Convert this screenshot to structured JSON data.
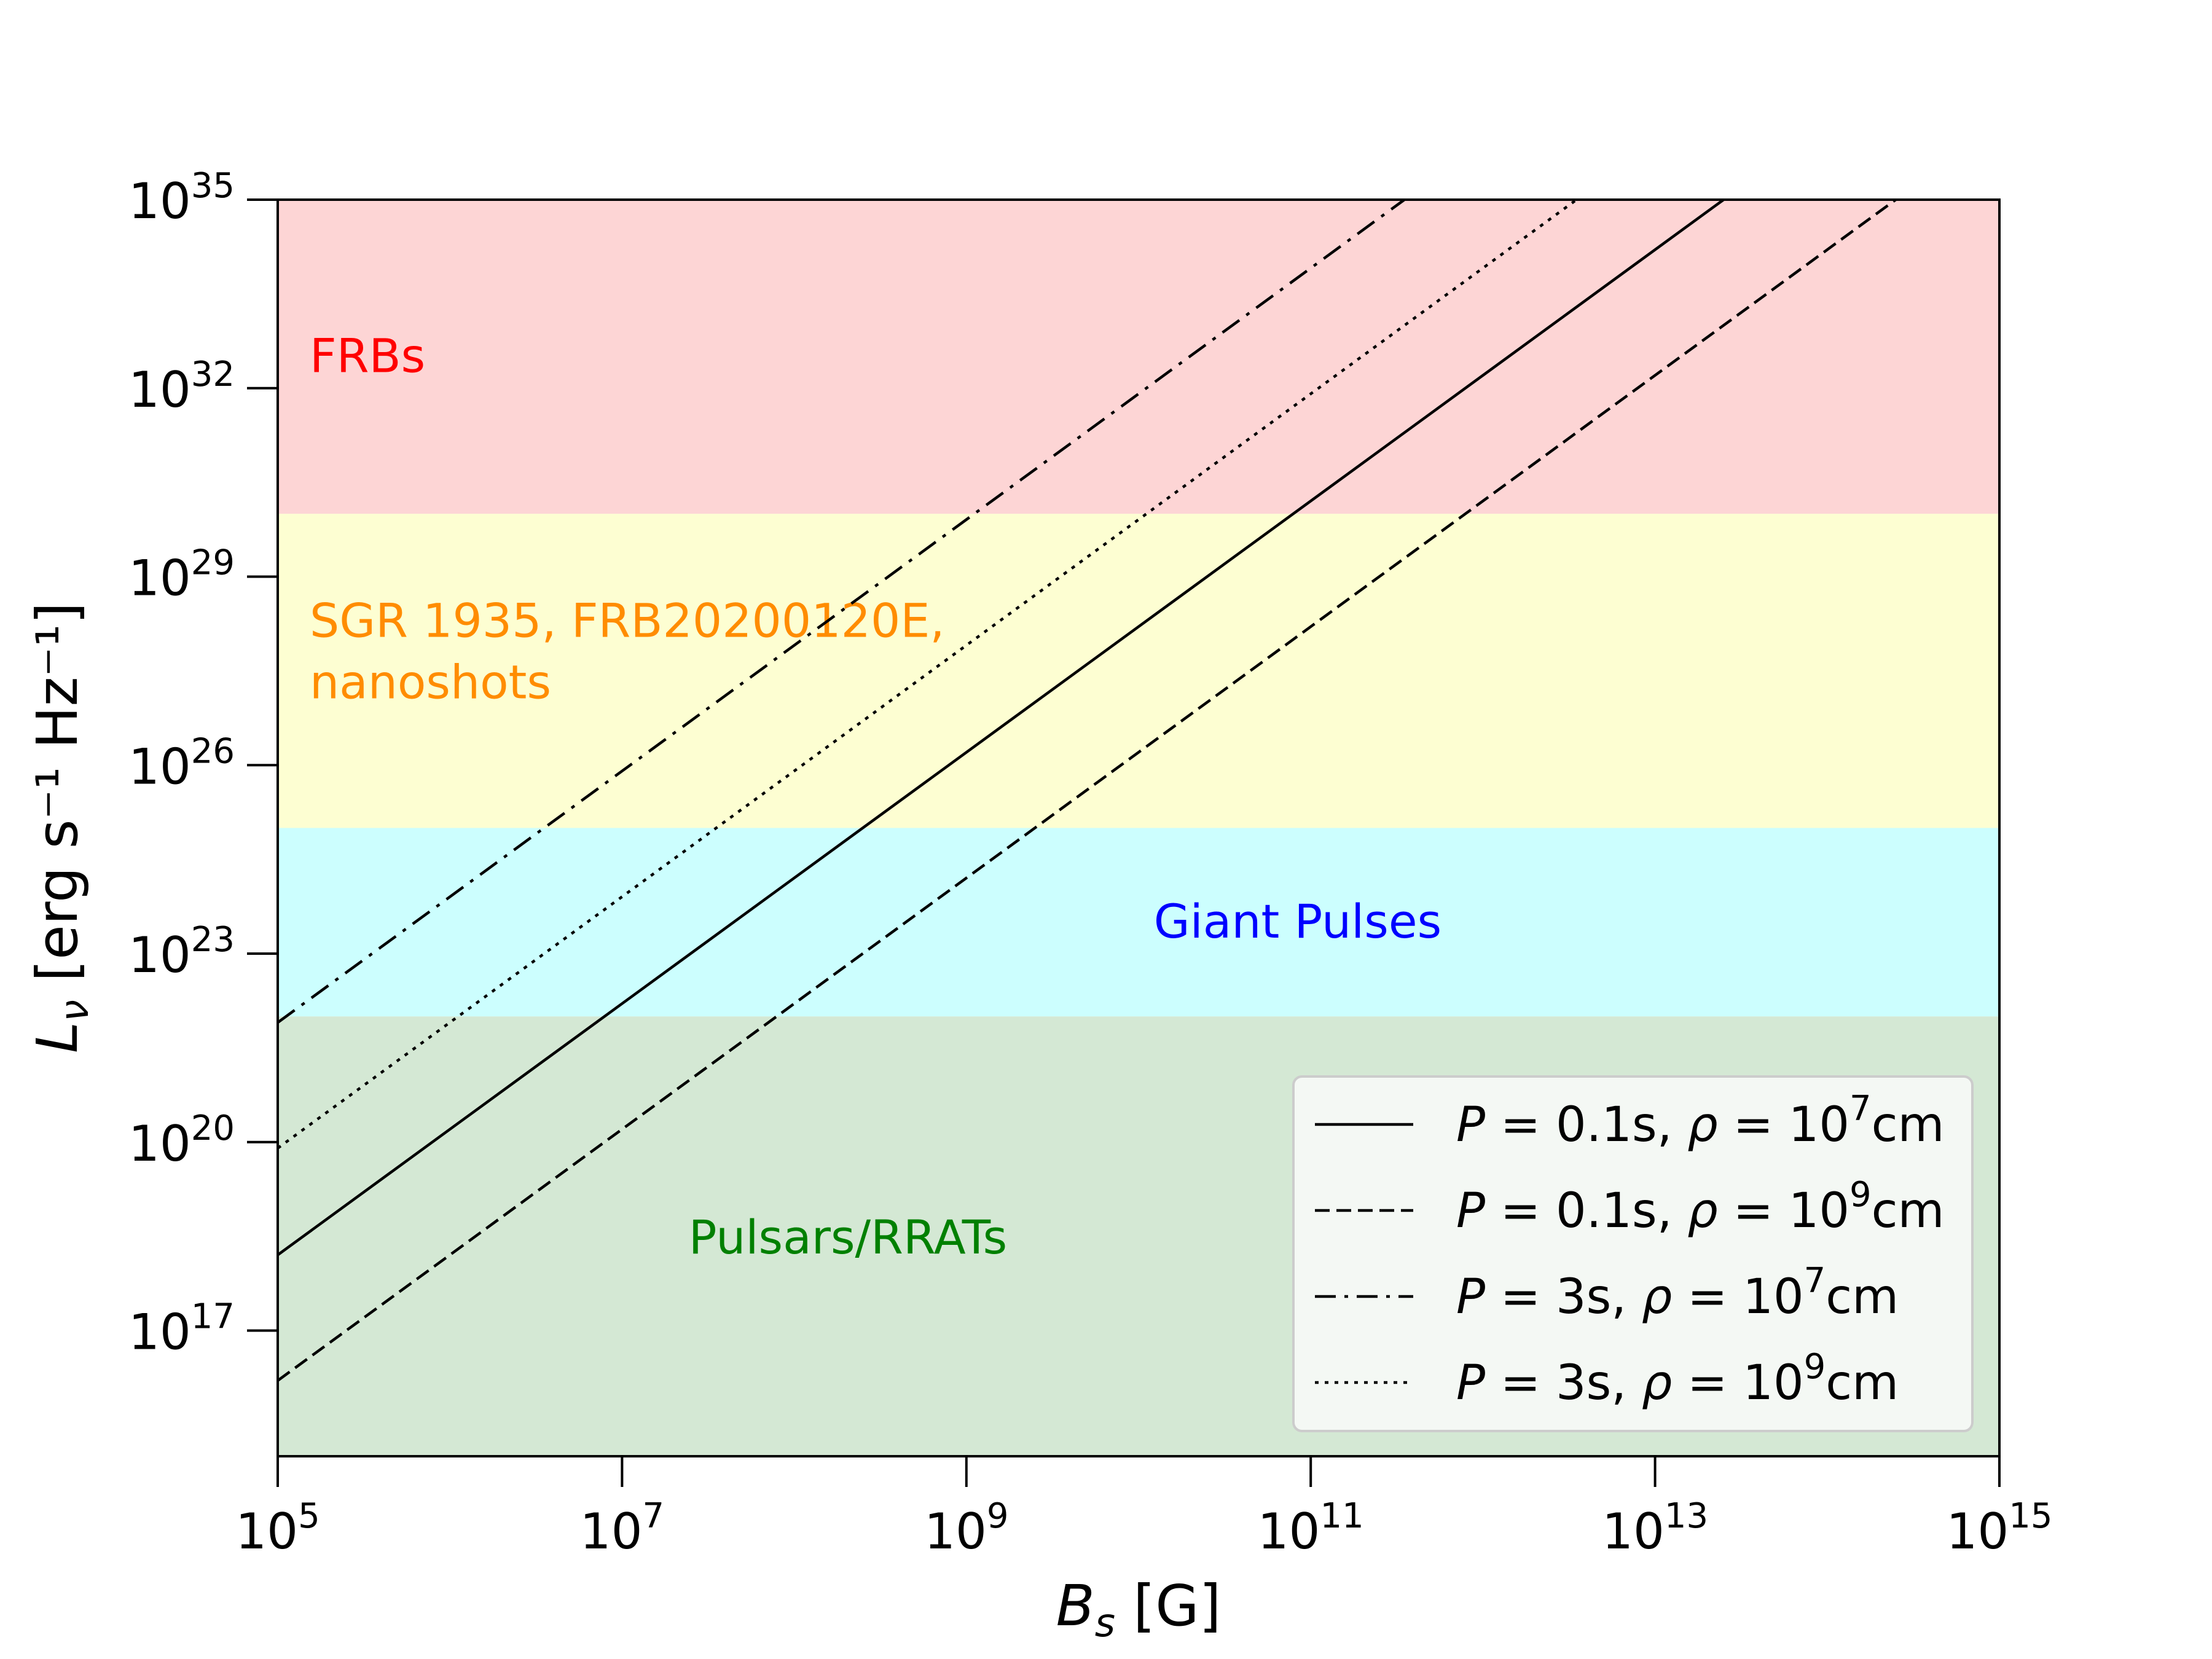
{
  "chart_data": {
    "type": "line",
    "xlabel": "B_s [G]",
    "xlabel_main": "B",
    "xlabel_sub": "s",
    "xlabel_unit": " [G]",
    "ylabel_main": "L",
    "ylabel_sub": "ν",
    "ylabel_unit": " [erg s⁻¹ Hz⁻¹]",
    "x_scale": "log",
    "y_scale": "log",
    "xlim": [
      100000.0,
      1000000000000000.0
    ],
    "ylim": [
      1000000000000000.0,
      1e+35
    ],
    "x_ticks": [
      {
        "exp": 5,
        "base": "10",
        "sup": "5"
      },
      {
        "exp": 7,
        "base": "10",
        "sup": "7"
      },
      {
        "exp": 9,
        "base": "10",
        "sup": "9"
      },
      {
        "exp": 11,
        "base": "10",
        "sup": "11"
      },
      {
        "exp": 13,
        "base": "10",
        "sup": "13"
      },
      {
        "exp": 15,
        "base": "10",
        "sup": "15"
      }
    ],
    "y_ticks": [
      {
        "exp": 17,
        "base": "10",
        "sup": "17"
      },
      {
        "exp": 20,
        "base": "10",
        "sup": "20"
      },
      {
        "exp": 23,
        "base": "10",
        "sup": "23"
      },
      {
        "exp": 26,
        "base": "10",
        "sup": "26"
      },
      {
        "exp": 29,
        "base": "10",
        "sup": "29"
      },
      {
        "exp": 32,
        "base": "10",
        "sup": "32"
      },
      {
        "exp": 35,
        "base": "10",
        "sup": "35"
      }
    ],
    "grid": false,
    "bands": [
      {
        "label": "FRBs",
        "lines": [
          "FRBs"
        ],
        "ymin": 1e+30,
        "ymax": 1e+35,
        "fill": "#fdd5d5",
        "text_color": "#ff0000",
        "label_pos": "left"
      },
      {
        "label": "SGR 1935, FRB20200120E, nanoshots",
        "lines": [
          "SGR 1935, FRB20200120E,",
          "nanoshots"
        ],
        "ymin": 1e+25,
        "ymax": 1e+30,
        "fill": "#fdfed2",
        "text_color": "#ff8c00",
        "label_pos": "left"
      },
      {
        "label": "Giant Pulses",
        "lines": [
          "Giant Pulses"
        ],
        "ymin": 1e+22,
        "ymax": 1e+25,
        "fill": "#ccfefe",
        "text_color": "#0000ff",
        "label_pos": "center"
      },
      {
        "label": "Pulsars/RRATs",
        "lines": [
          "Pulsars/RRATs"
        ],
        "ymin": 1000000000000000.0,
        "ymax": 1e+22,
        "fill": "#d4e8d4",
        "text_color": "#008000",
        "label_pos": "center-left"
      }
    ],
    "series": [
      {
        "name": "P = 0.1s, ρ = 10^7cm",
        "P": "0.1s",
        "rho_exp": "7",
        "style": "solid",
        "points": [
          [
            100000.0,
            1.6e+18
          ],
          [
            25000000000000.0,
            1e+35
          ]
        ]
      },
      {
        "name": "P = 0.1s, ρ = 10^9cm",
        "P": "0.1s",
        "rho_exp": "9",
        "style": "dashed",
        "points": [
          [
            100000.0,
            1.6e+16
          ],
          [
            250000000000000.0,
            1e+35
          ]
        ]
      },
      {
        "name": "P = 3s, ρ = 10^7cm",
        "P": "3s",
        "rho_exp": "7",
        "style": "dashdot",
        "points": [
          [
            100000.0,
            8e+21
          ],
          [
            350000000000.0,
            1e+35
          ]
        ]
      },
      {
        "name": "P = 3s, ρ = 10^9cm",
        "P": "3s",
        "rho_exp": "9",
        "style": "dotted",
        "points": [
          [
            100000.0,
            8e+19
          ],
          [
            3500000000000.0,
            1e+35
          ]
        ]
      }
    ],
    "legend": {
      "placement": "lower-right"
    }
  }
}
